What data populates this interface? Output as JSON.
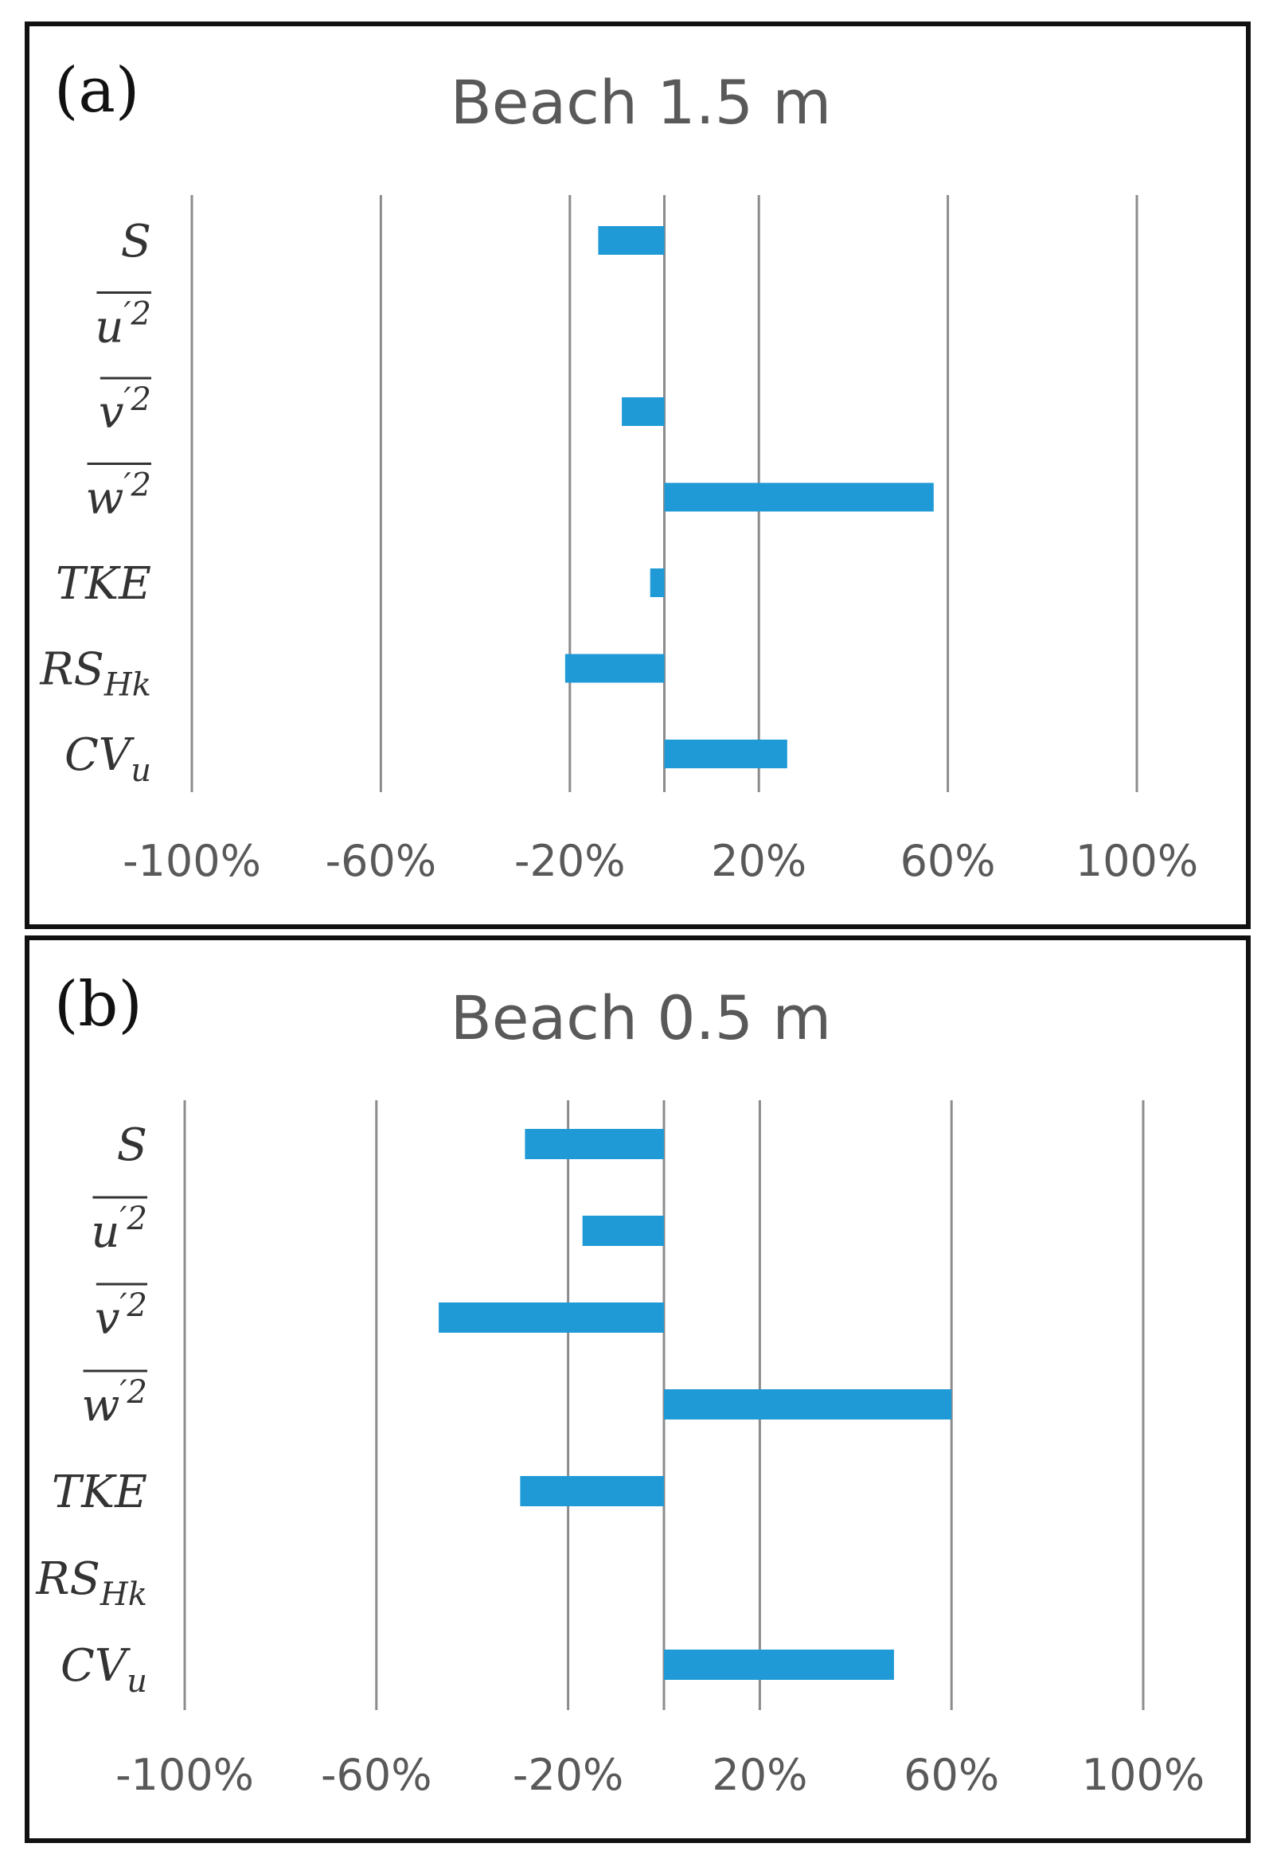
{
  "chart_data": [
    {
      "type": "bar",
      "orientation": "horizontal",
      "panel_label": "(a)",
      "title": "Beach 1.5 m",
      "categories": [
        {
          "base": "S",
          "sub": "",
          "sup": "",
          "overline": false
        },
        {
          "base": "u",
          "sub": "",
          "sup": "′2",
          "overline": true
        },
        {
          "base": "v",
          "sub": "",
          "sup": "′2",
          "overline": true
        },
        {
          "base": "w",
          "sub": "",
          "sup": "′2",
          "overline": true
        },
        {
          "base": "TKE",
          "sub": "",
          "sup": "",
          "overline": false
        },
        {
          "base": "RS",
          "sub": "Hk",
          "sup": "",
          "overline": false
        },
        {
          "base": "CV",
          "sub": "u",
          "sup": "",
          "overline": false
        }
      ],
      "values": [
        -14,
        0,
        -9,
        57,
        -3,
        -21,
        26
      ],
      "xlim": [
        -100,
        100
      ],
      "xticks": [
        -100,
        -60,
        -20,
        20,
        60,
        100
      ],
      "xtick_labels": [
        "-100%",
        "-60%",
        "-20%",
        "20%",
        "60%",
        "100%"
      ],
      "grid": true,
      "color": "#1f9ad6"
    },
    {
      "type": "bar",
      "orientation": "horizontal",
      "panel_label": "(b)",
      "title": "Beach 0.5 m",
      "categories": [
        {
          "base": "S",
          "sub": "",
          "sup": "",
          "overline": false
        },
        {
          "base": "u",
          "sub": "",
          "sup": "′2",
          "overline": true
        },
        {
          "base": "v",
          "sub": "",
          "sup": "′2",
          "overline": true
        },
        {
          "base": "w",
          "sub": "",
          "sup": "′2",
          "overline": true
        },
        {
          "base": "TKE",
          "sub": "",
          "sup": "",
          "overline": false
        },
        {
          "base": "RS",
          "sub": "Hk",
          "sup": "",
          "overline": false
        },
        {
          "base": "CV",
          "sub": "u",
          "sup": "",
          "overline": false
        }
      ],
      "values": [
        -29,
        -17,
        -47,
        60,
        -30,
        0,
        48
      ],
      "xlim": [
        -100,
        100
      ],
      "xticks": [
        -100,
        -60,
        -20,
        20,
        60,
        100
      ],
      "xtick_labels": [
        "-100%",
        "-60%",
        "-20%",
        "20%",
        "60%",
        "100%"
      ],
      "grid": true,
      "color": "#1f9ad6"
    }
  ]
}
